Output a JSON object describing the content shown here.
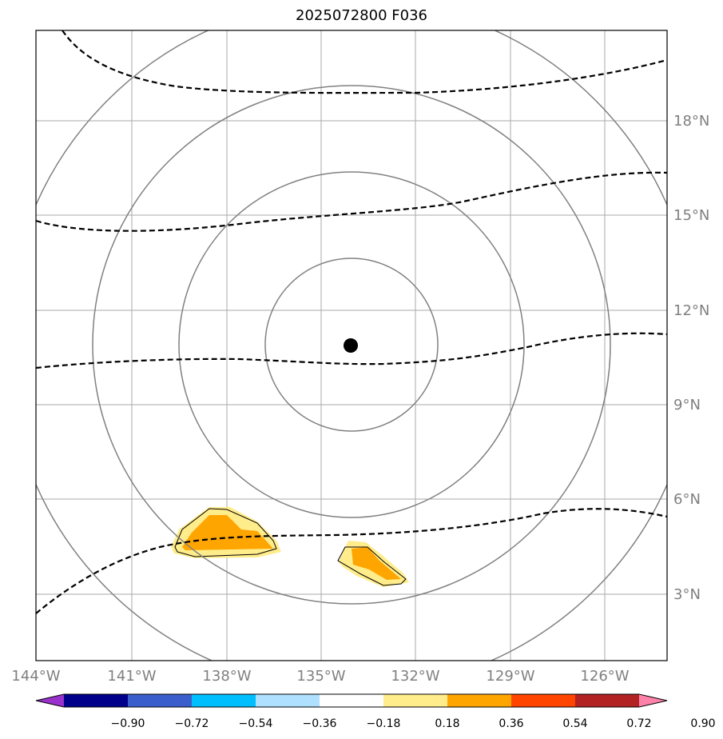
{
  "title": "2025072800 F036",
  "lon_labels": [
    "144°W",
    "141°W",
    "138°W",
    "135°W",
    "132°W",
    "129°W",
    "126°W"
  ],
  "lat_labels": [
    "18°N",
    "15°N",
    "12°N",
    "9°N",
    "6°N",
    "3°N"
  ],
  "colorbar": {
    "ticks": [
      "−0.90",
      "−0.72",
      "−0.54",
      "−0.36",
      "−0.18",
      "0.18",
      "0.36",
      "0.54",
      "0.72",
      "0.90"
    ],
    "colors": [
      "#9932cc",
      "#00008b",
      "#3a5fcd",
      "#00bfff",
      "#b0e0ff",
      "#ffffff",
      "#ffec8b",
      "#ffa500",
      "#ff4500",
      "#b22222",
      "#ff82ab"
    ]
  },
  "colors": {
    "grid": "#aaaaaa",
    "range_rings": "#808080",
    "contour": "#000000",
    "center_marker": "#000000",
    "shade_low": "#ffec8b",
    "shade_mid": "#ffa500"
  },
  "center_marker": "storm-center"
}
